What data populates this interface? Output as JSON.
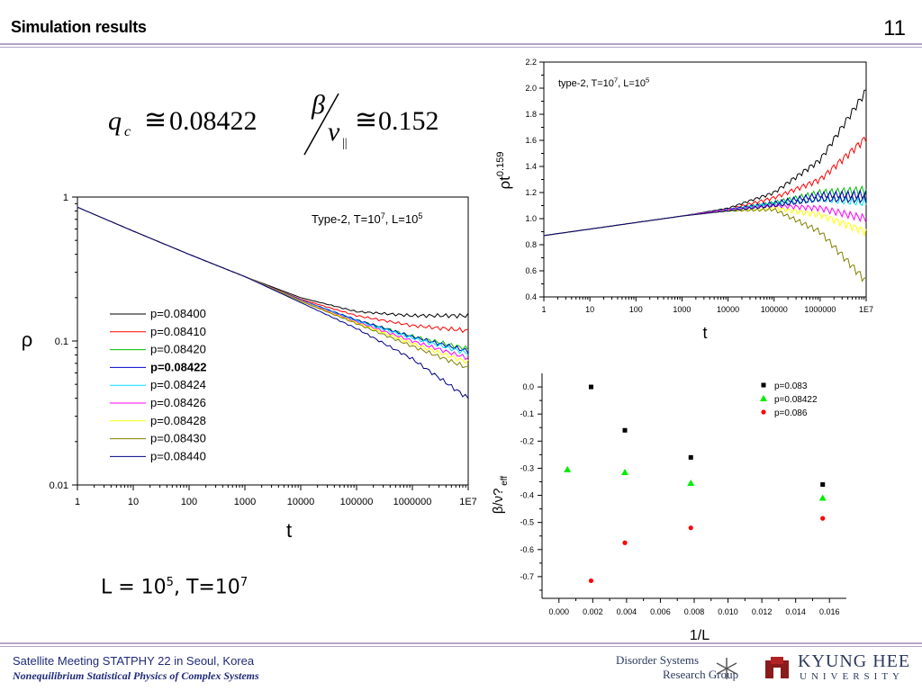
{
  "slide": {
    "title": "Simulation results",
    "number": "11",
    "caption_L": "L = 10",
    "caption_L_exp": "5",
    "caption_T": ", T=10",
    "caption_T_exp": "7",
    "formula": {
      "qc_symbol": "q",
      "qc_sub": "c",
      "approx": "≅",
      "qc_value": "0.08422",
      "beta": "β",
      "nu": "ν",
      "nu_sub": "||",
      "ratio_value": "0.152"
    },
    "footer": {
      "line1": "Satellite Meeting STATPHY 22 in Seoul, Korea",
      "line2": "Nonequilibrium Statistical Physics of Complex Systems"
    },
    "logos": {
      "group_line1": "Disorder Systems",
      "group_line2": "Research Group",
      "university_line1": "KYUNG HEE",
      "university_line2": "UNIVERSITY"
    },
    "colors": {
      "rule": "#b7a4c8",
      "footer_text": "#1f2a7a"
    }
  },
  "chart_data": [
    {
      "type": "line",
      "xscale": "log",
      "yscale": "log",
      "xlim": [
        1,
        10000000
      ],
      "ylim": [
        0.01,
        1
      ],
      "xticks": [
        "1",
        "10",
        "100",
        "1000",
        "10000",
        "100000",
        "1000000",
        "1E7"
      ],
      "yticks": [
        "0.01",
        "0.1",
        "1"
      ],
      "xlabel": "t",
      "ylabel": "ρ",
      "annotation": "Type-2, T=10^7, L=10^5",
      "legend_position": "lower-left",
      "series": [
        {
          "name": "p=0.08400",
          "color": "#000000",
          "x": [
            1,
            10,
            100,
            1000,
            10000,
            100000,
            1000000,
            10000000
          ],
          "y": [
            0.85,
            0.58,
            0.4,
            0.28,
            0.2,
            0.16,
            0.15,
            0.15
          ]
        },
        {
          "name": "p=0.08410",
          "color": "#ff0000",
          "x": [
            1,
            10,
            100,
            1000,
            10000,
            100000,
            1000000,
            10000000
          ],
          "y": [
            0.85,
            0.58,
            0.4,
            0.28,
            0.195,
            0.15,
            0.128,
            0.118
          ]
        },
        {
          "name": "p=0.08420",
          "color": "#00c000",
          "x": [
            1,
            10,
            100,
            1000,
            10000,
            100000,
            1000000,
            10000000
          ],
          "y": [
            0.85,
            0.58,
            0.4,
            0.28,
            0.193,
            0.14,
            0.108,
            0.088
          ]
        },
        {
          "name": "p=0.08422",
          "color": "#0000cc",
          "x": [
            1,
            10,
            100,
            1000,
            10000,
            100000,
            1000000,
            10000000
          ],
          "y": [
            0.85,
            0.58,
            0.4,
            0.28,
            0.193,
            0.14,
            0.107,
            0.085
          ]
        },
        {
          "name": "p=0.08424",
          "color": "#00e0ff",
          "x": [
            1,
            10,
            100,
            1000,
            10000,
            100000,
            1000000,
            10000000
          ],
          "y": [
            0.85,
            0.58,
            0.4,
            0.28,
            0.192,
            0.138,
            0.105,
            0.082
          ]
        },
        {
          "name": "p=0.08426",
          "color": "#ff00ff",
          "x": [
            1,
            10,
            100,
            1000,
            10000,
            100000,
            1000000,
            10000000
          ],
          "y": [
            0.85,
            0.58,
            0.4,
            0.28,
            0.191,
            0.136,
            0.1,
            0.076
          ]
        },
        {
          "name": "p=0.08428",
          "color": "#ffff00",
          "x": [
            1,
            10,
            100,
            1000,
            10000,
            100000,
            1000000,
            10000000
          ],
          "y": [
            0.85,
            0.58,
            0.4,
            0.28,
            0.19,
            0.134,
            0.096,
            0.071
          ]
        },
        {
          "name": "p=0.08430",
          "color": "#808000",
          "x": [
            1,
            10,
            100,
            1000,
            10000,
            100000,
            1000000,
            10000000
          ],
          "y": [
            0.85,
            0.58,
            0.4,
            0.28,
            0.189,
            0.132,
            0.092,
            0.065
          ]
        },
        {
          "name": "p=0.08440",
          "color": "#000080",
          "x": [
            1,
            10,
            100,
            1000,
            10000,
            100000,
            1000000,
            10000000
          ],
          "y": [
            0.85,
            0.58,
            0.4,
            0.28,
            0.185,
            0.122,
            0.075,
            0.04
          ]
        }
      ]
    },
    {
      "type": "line",
      "xscale": "log",
      "yscale": "linear",
      "xlim": [
        1,
        10000000
      ],
      "ylim": [
        0.4,
        2.2
      ],
      "xticks": [
        "1",
        "10",
        "100",
        "1000",
        "10000",
        "100000",
        "1000000",
        "1E7"
      ],
      "yticks": [
        "0.4",
        "0.6",
        "0.8",
        "1.0",
        "1.2",
        "1.4",
        "1.6",
        "1.8",
        "2.0",
        "2.2"
      ],
      "xlabel": "t",
      "ylabel": "ρt^0.159",
      "annotation": "type-2, T=10^7, L=10^5",
      "series": [
        {
          "color": "#000000",
          "x": [
            1,
            10,
            100,
            1000,
            10000,
            100000,
            1000000,
            10000000
          ],
          "y": [
            0.87,
            0.92,
            0.97,
            1.02,
            1.08,
            1.2,
            1.45,
            1.98
          ]
        },
        {
          "color": "#ff0000",
          "x": [
            1,
            10,
            100,
            1000,
            10000,
            100000,
            1000000,
            10000000
          ],
          "y": [
            0.87,
            0.92,
            0.97,
            1.02,
            1.07,
            1.16,
            1.3,
            1.62
          ]
        },
        {
          "color": "#00c000",
          "x": [
            1,
            10,
            100,
            1000,
            10000,
            100000,
            1000000,
            10000000
          ],
          "y": [
            0.87,
            0.92,
            0.97,
            1.02,
            1.07,
            1.12,
            1.2,
            1.22
          ]
        },
        {
          "color": "#0000cc",
          "x": [
            1,
            10,
            100,
            1000,
            10000,
            100000,
            1000000,
            10000000
          ],
          "y": [
            0.87,
            0.92,
            0.97,
            1.02,
            1.07,
            1.12,
            1.18,
            1.18
          ]
        },
        {
          "color": "#00e0ff",
          "x": [
            1,
            10,
            100,
            1000,
            10000,
            100000,
            1000000,
            10000000
          ],
          "y": [
            0.87,
            0.92,
            0.97,
            1.02,
            1.07,
            1.11,
            1.15,
            1.12
          ]
        },
        {
          "color": "#ff00ff",
          "x": [
            1,
            10,
            100,
            1000,
            10000,
            100000,
            1000000,
            10000000
          ],
          "y": [
            0.87,
            0.92,
            0.97,
            1.02,
            1.07,
            1.1,
            1.08,
            1.0
          ]
        },
        {
          "color": "#ffff00",
          "x": [
            1,
            10,
            100,
            1000,
            10000,
            100000,
            1000000,
            10000000
          ],
          "y": [
            0.87,
            0.92,
            0.97,
            1.02,
            1.06,
            1.08,
            1.03,
            0.9
          ]
        },
        {
          "color": "#808000",
          "x": [
            1,
            10,
            100,
            1000,
            10000,
            100000,
            1000000,
            10000000
          ],
          "y": [
            0.87,
            0.92,
            0.97,
            1.02,
            1.06,
            1.07,
            0.9,
            0.52
          ]
        },
        {
          "color": "#000080",
          "x": [
            1,
            10,
            100,
            1000,
            10000,
            100000,
            1000000,
            10000000
          ],
          "y": [
            0.87,
            0.92,
            0.97,
            1.02,
            1.06,
            1.1,
            1.15,
            1.15
          ]
        }
      ]
    },
    {
      "type": "scatter",
      "xlim": [
        -0.001,
        0.017
      ],
      "ylim": [
        -0.78,
        0.05
      ],
      "xticks": [
        "0.000",
        "0.002",
        "0.004",
        "0.006",
        "0.008",
        "0.010",
        "0.012",
        "0.014",
        "0.016"
      ],
      "yticks": [
        "0.0",
        "-0.1",
        "-0.2",
        "-0.3",
        "-0.4",
        "-0.5",
        "-0.6",
        "-0.7"
      ],
      "xlabel": "1/L",
      "ylabel": "β/ν? eff",
      "legend_position": "top-right",
      "series": [
        {
          "name": "p=0.083",
          "color": "#000000",
          "marker": "square",
          "x": [
            0.0019,
            0.0039,
            0.0078,
            0.0156
          ],
          "y": [
            0.0,
            -0.16,
            -0.26,
            -0.36
          ]
        },
        {
          "name": "p=0.08422",
          "color": "#00ee00",
          "marker": "triangle",
          "x": [
            0.0005,
            0.0039,
            0.0078,
            0.0156
          ],
          "y": [
            -0.305,
            -0.315,
            -0.355,
            -0.41
          ]
        },
        {
          "name": "p=0.086",
          "color": "#ff0000",
          "marker": "circle",
          "x": [
            0.0019,
            0.0039,
            0.0078,
            0.0156
          ],
          "y": [
            -0.715,
            -0.575,
            -0.52,
            -0.485
          ]
        }
      ]
    }
  ]
}
